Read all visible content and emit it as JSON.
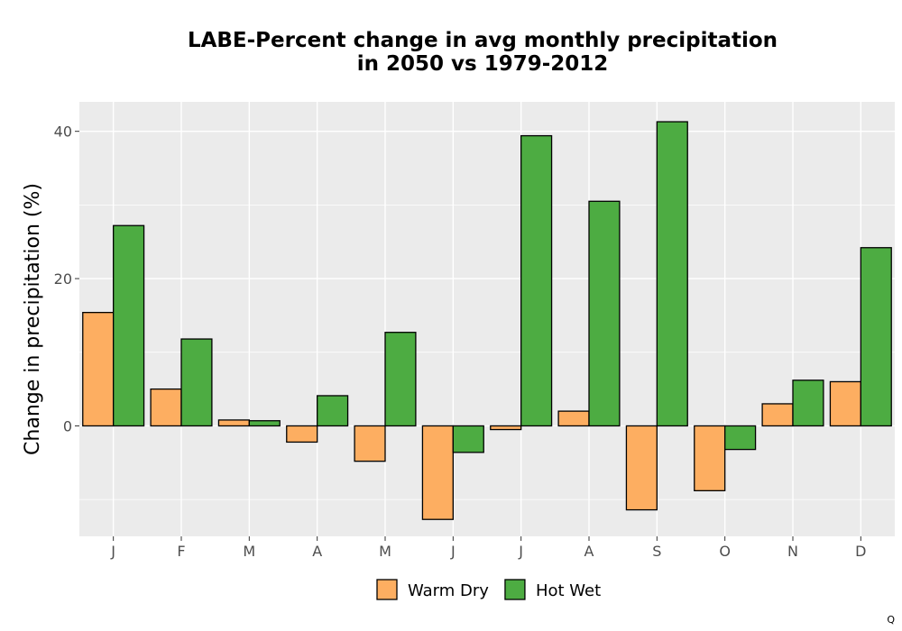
{
  "chart_data": {
    "type": "bar",
    "title": [
      "LABE-Percent change in avg monthly precipitation",
      "in 2050 vs 1979-2012"
    ],
    "xlabel": "",
    "ylabel": "Change in precipitation (%)",
    "ylim": [
      -15,
      44
    ],
    "yticks": [
      0,
      20,
      40
    ],
    "categories": [
      "J",
      "F",
      "M",
      "A",
      "M",
      "J",
      "J",
      "A",
      "S",
      "O",
      "N",
      "D"
    ],
    "series": [
      {
        "name": "Warm Dry",
        "color": "#FDAE61",
        "values": [
          15.4,
          5.0,
          0.8,
          -2.2,
          -4.8,
          -12.7,
          -0.5,
          2.0,
          -11.4,
          -8.8,
          3.0,
          6.0
        ]
      },
      {
        "name": "Hot Wet",
        "color": "#4DAC42",
        "values": [
          27.2,
          11.8,
          0.7,
          4.1,
          12.7,
          -3.6,
          39.4,
          30.5,
          41.3,
          -3.2,
          6.2,
          24.2
        ]
      }
    ],
    "grid": true,
    "legend_position": "bottom"
  },
  "corner_label": "Q"
}
